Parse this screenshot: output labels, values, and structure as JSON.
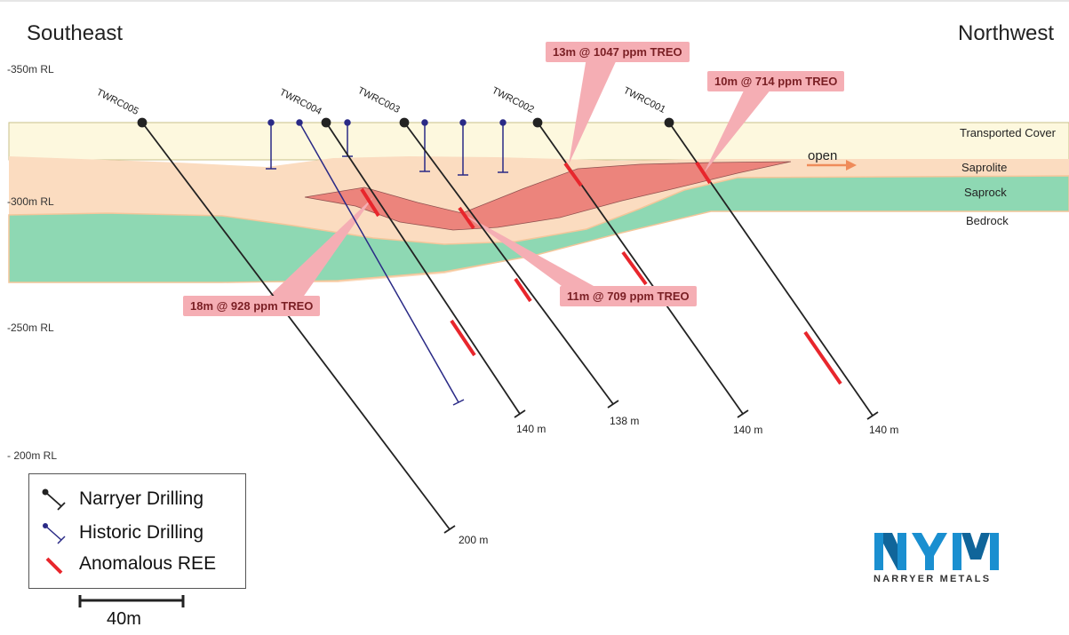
{
  "directions": {
    "left": "Southeast",
    "right": "Northwest"
  },
  "rl_labels": {
    "rl350": "-350m RL",
    "rl300": "-300m RL",
    "rl250": "-250m RL",
    "rl200": "- 200m RL"
  },
  "layers": {
    "transported": "Transported Cover",
    "saprolite": "Saprolite",
    "saprock": "Saprock",
    "bedrock": "Bedrock"
  },
  "callouts": {
    "c1": "13m @ 1047 ppm TREO",
    "c2": "10m @ 714 ppm TREO",
    "c3": "18m @ 928 ppm TREO",
    "c4": "11m @ 709 ppm TREO"
  },
  "holes": {
    "h5": {
      "name": "TWRC005",
      "depth": "200 m"
    },
    "h4": {
      "name": "TWRC004",
      "depth": "140 m"
    },
    "h3": {
      "name": "TWRC003",
      "depth": "138 m"
    },
    "h2": {
      "name": "TWRC002",
      "depth": "140 m"
    },
    "h1": {
      "name": "TWRC001",
      "depth": "140 m"
    }
  },
  "open_label": "open",
  "legend": {
    "narryer": "Narryer Drilling",
    "historic": "Historic Drilling",
    "anomalous": "Anomalous REE"
  },
  "scale_label": "40m",
  "logo": {
    "mark": "NYM",
    "name": "NARRYER METALS"
  },
  "colors": {
    "transported_cover": "#fdf8de",
    "saprolite": "#fbdcc0",
    "saprock": "#8ed8b3",
    "ree_zone": "#ec8079",
    "anomalous": "#e8262c",
    "narryer_drill": "#222222",
    "historic_drill": "#2a2a86",
    "callout": "#f5aeb4",
    "logo_blue": "#1a8fd0"
  }
}
